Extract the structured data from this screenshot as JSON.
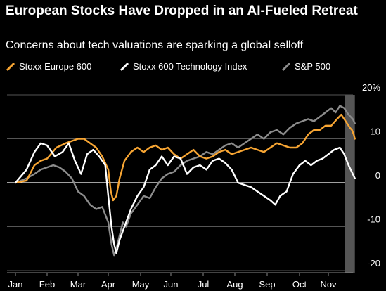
{
  "chart_data": {
    "type": "line",
    "title": "European Stocks Have Dropped in an AI-Fueled Retreat",
    "subtitle": "Concerns about tech valuations are sparking a global selloff",
    "x_tick_labels": [
      "Jan",
      "Feb",
      "Mar",
      "Apr",
      "May",
      "Jun",
      "Jul",
      "Aug",
      "Sep",
      "Oct",
      "Nov"
    ],
    "y_tick_labels": [
      "20%",
      "10",
      "0",
      "-10",
      "-20"
    ],
    "y_ticks": [
      20,
      10,
      0,
      -10,
      -20
    ],
    "ylim": [
      -20,
      20
    ],
    "x_unit": "months since Jan 1",
    "xlim": [
      0,
      11
    ],
    "grid": true,
    "legend_position": "top-left",
    "shaded_region": [
      10.58,
      10.92
    ],
    "series": [
      {
        "name": "Stoxx Europe 600",
        "color": "#f7a533",
        "x": [
          0.0,
          0.35,
          0.6,
          0.8,
          1.0,
          1.3,
          1.6,
          1.8,
          2.0,
          2.2,
          2.4,
          2.6,
          2.8,
          3.0,
          3.08,
          3.15,
          3.25,
          3.35,
          3.5,
          3.7,
          3.9,
          4.1,
          4.3,
          4.5,
          4.7,
          4.9,
          5.1,
          5.3,
          5.5,
          5.7,
          5.9,
          6.1,
          6.3,
          6.5,
          6.7,
          6.9,
          7.1,
          7.3,
          7.5,
          7.7,
          7.9,
          8.1,
          8.3,
          8.5,
          8.7,
          8.9,
          9.1,
          9.3,
          9.5,
          9.7,
          9.9,
          10.1,
          10.3,
          10.45,
          10.6,
          10.75,
          10.82,
          10.88,
          10.92
        ],
        "values": [
          0.0,
          0.5,
          4.0,
          5.0,
          5.5,
          8.0,
          9.0,
          9.5,
          10.0,
          10.0,
          9.0,
          8.0,
          6.0,
          3.0,
          -2.0,
          -4.0,
          -3.0,
          1.0,
          5.0,
          7.0,
          8.0,
          7.0,
          8.0,
          8.5,
          7.5,
          8.0,
          6.5,
          5.5,
          6.5,
          7.5,
          6.0,
          5.5,
          6.0,
          7.0,
          7.5,
          6.5,
          7.0,
          7.5,
          8.0,
          7.5,
          7.0,
          8.0,
          9.0,
          8.5,
          8.0,
          8.0,
          9.0,
          11.0,
          12.0,
          12.0,
          13.0,
          13.0,
          14.5,
          15.5,
          14.0,
          12.5,
          12.0,
          11.0,
          10.0
        ]
      },
      {
        "name": "Stoxx 600 Technology Index",
        "color": "#ffffff",
        "x": [
          0.0,
          0.35,
          0.6,
          0.8,
          1.0,
          1.25,
          1.5,
          1.7,
          1.9,
          2.1,
          2.3,
          2.5,
          2.7,
          2.9,
          3.0,
          3.1,
          3.18,
          3.25,
          3.35,
          3.5,
          3.7,
          3.9,
          4.1,
          4.3,
          4.5,
          4.7,
          4.9,
          5.1,
          5.3,
          5.5,
          5.7,
          5.9,
          6.1,
          6.3,
          6.5,
          6.7,
          6.9,
          7.1,
          7.3,
          7.5,
          7.7,
          7.9,
          8.1,
          8.25,
          8.4,
          8.6,
          8.8,
          9.0,
          9.2,
          9.4,
          9.6,
          9.8,
          10.0,
          10.2,
          10.4,
          10.55,
          10.7,
          10.85,
          10.92
        ],
        "values": [
          0.0,
          3.0,
          7.0,
          9.0,
          8.5,
          6.0,
          7.0,
          9.0,
          5.0,
          2.0,
          6.5,
          7.5,
          6.0,
          4.0,
          -3.0,
          -10.0,
          -14.0,
          -16.0,
          -13.0,
          -10.0,
          -6.0,
          -3.0,
          -1.0,
          3.0,
          4.0,
          6.0,
          4.0,
          6.0,
          5.5,
          2.0,
          3.5,
          4.0,
          3.0,
          5.0,
          5.5,
          4.5,
          3.0,
          0.0,
          -0.5,
          -1.0,
          -2.0,
          -3.0,
          -4.0,
          -5.0,
          -3.0,
          -2.0,
          2.0,
          4.0,
          5.0,
          4.0,
          5.0,
          5.5,
          6.5,
          7.5,
          8.0,
          6.5,
          4.0,
          2.0,
          1.0
        ]
      },
      {
        "name": "S&P 500",
        "color": "#8c8c8c",
        "x": [
          0.0,
          0.35,
          0.6,
          0.8,
          1.0,
          1.2,
          1.4,
          1.6,
          1.8,
          2.0,
          2.2,
          2.4,
          2.6,
          2.8,
          3.0,
          3.1,
          3.18,
          3.25,
          3.35,
          3.45,
          3.55,
          3.7,
          3.9,
          4.1,
          4.3,
          4.5,
          4.7,
          4.9,
          5.1,
          5.3,
          5.5,
          5.7,
          5.9,
          6.1,
          6.3,
          6.5,
          6.7,
          6.9,
          7.1,
          7.3,
          7.5,
          7.7,
          7.9,
          8.1,
          8.3,
          8.5,
          8.7,
          8.9,
          9.1,
          9.3,
          9.5,
          9.7,
          9.9,
          10.1,
          10.25,
          10.4,
          10.55,
          10.7,
          10.85,
          10.92
        ],
        "values": [
          0.0,
          1.0,
          2.0,
          3.0,
          3.5,
          4.0,
          3.5,
          2.5,
          1.0,
          -2.0,
          -3.0,
          -5.0,
          -6.0,
          -5.5,
          -9.0,
          -14.0,
          -16.5,
          -15.0,
          -12.0,
          -9.0,
          -10.0,
          -7.0,
          -5.0,
          -3.0,
          -3.5,
          -1.0,
          1.0,
          2.0,
          2.5,
          4.0,
          5.0,
          5.5,
          6.0,
          7.0,
          6.5,
          7.5,
          8.5,
          9.0,
          8.0,
          9.0,
          10.0,
          11.0,
          10.0,
          11.5,
          12.0,
          11.0,
          12.5,
          13.5,
          14.0,
          14.5,
          14.0,
          15.0,
          16.0,
          17.0,
          16.0,
          17.5,
          17.0,
          15.5,
          14.5,
          13.5
        ]
      }
    ]
  }
}
